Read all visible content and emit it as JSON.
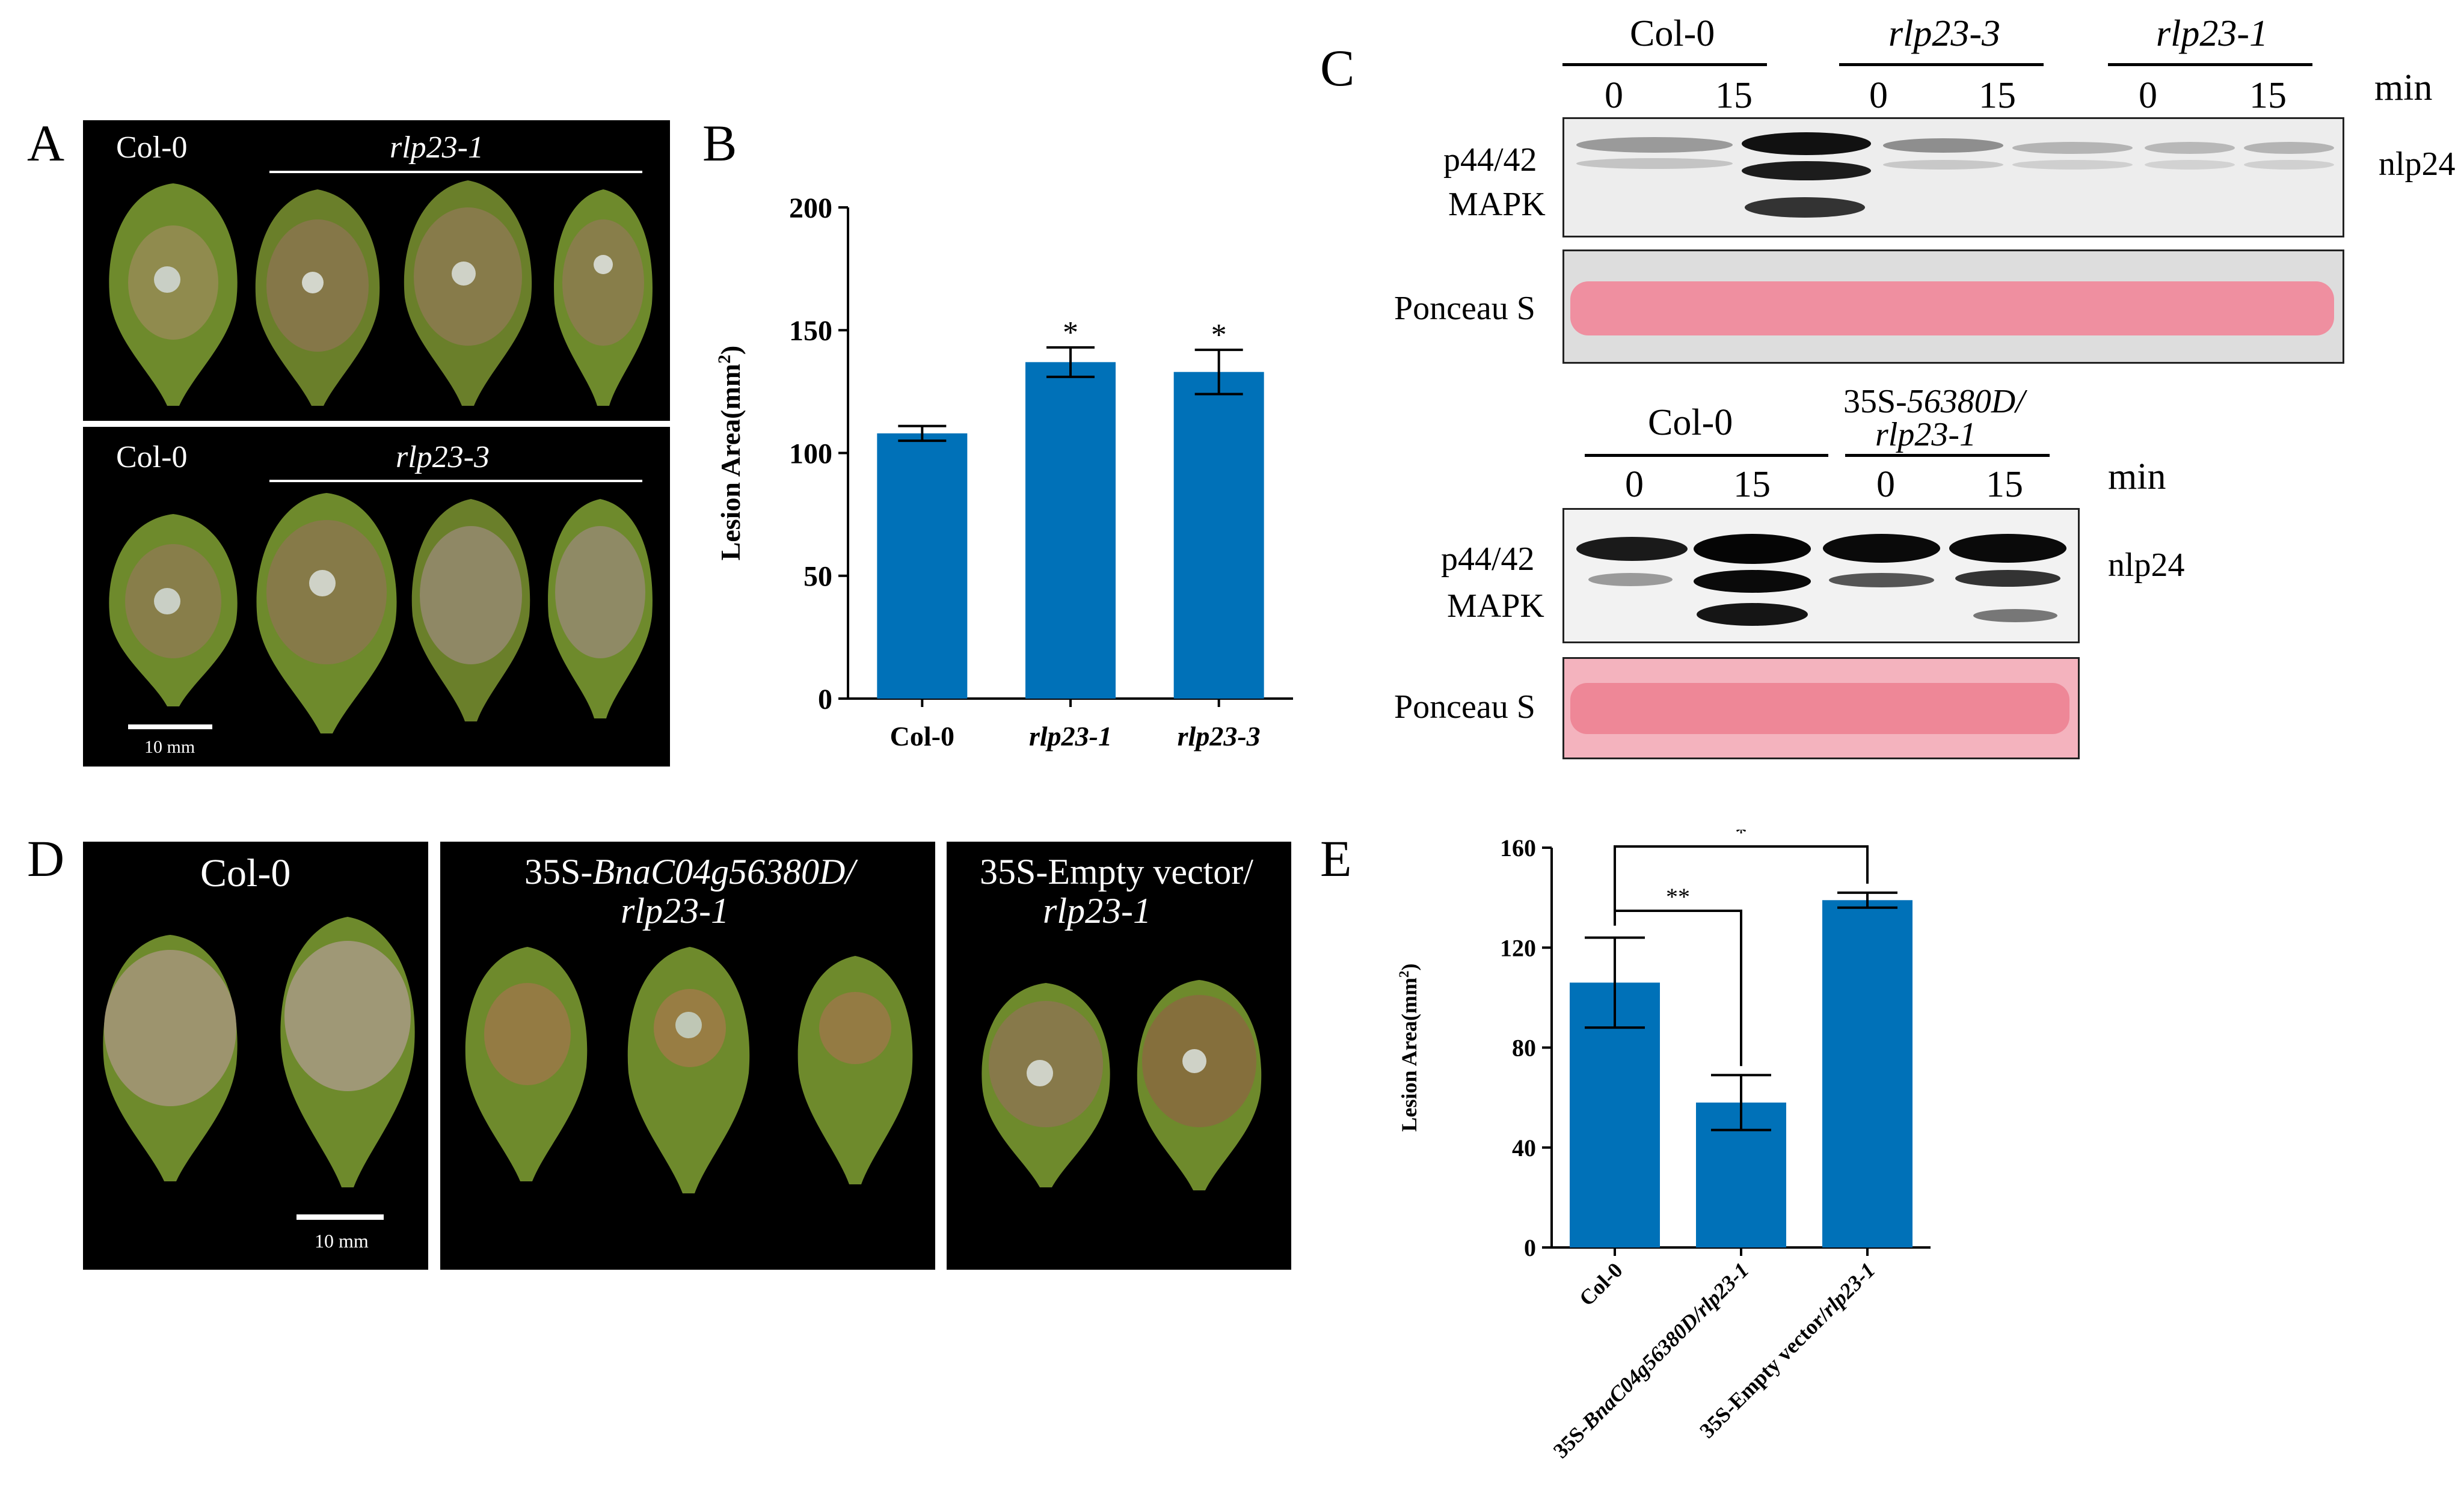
{
  "panels": {
    "A": {
      "letter": "A",
      "top": {
        "control": "Col-0",
        "mutant": "rlp23-1"
      },
      "bottom": {
        "control": "Col-0",
        "mutant": "rlp23-3"
      },
      "scale_label": "10 mm"
    },
    "B": {
      "letter": "B"
    },
    "C": {
      "letter": "C",
      "blot1": {
        "groups": [
          "Col-0",
          "rlp23-3",
          "rlp23-1"
        ],
        "times": [
          "0",
          "15",
          "0",
          "15",
          "0",
          "15"
        ],
        "unit": "min",
        "band_label_line1": "p44/42",
        "band_label_line2": "MAPK",
        "treatment": "nlp24",
        "loading": "Ponceau S"
      },
      "blot2": {
        "group1": "Col-0",
        "group2_line1_prefix": "35S-",
        "group2_line1_italic": "56380D/",
        "group2_line2": "rlp23-1",
        "times": [
          "0",
          "15",
          "0",
          "15"
        ],
        "unit": "min",
        "band_label_line1": "p44/42",
        "band_label_line2": "MAPK",
        "treatment": "nlp24",
        "loading": "Ponceau S"
      }
    },
    "D": {
      "letter": "D",
      "photo1_label": "Col-0",
      "photo2_label_line1_prefix": "35S-",
      "photo2_label_line1_italic": "BnaC04g56380D/",
      "photo2_label_line2": "rlp23-1",
      "photo3_label_line1": "35S-Empty vector/",
      "photo3_label_line2": "rlp23-1",
      "scale_label": "10 mm"
    },
    "E": {
      "letter": "E"
    }
  },
  "chart_data": [
    {
      "panel": "B",
      "type": "bar",
      "categories": [
        "Col-0",
        "rlp23-1",
        "rlp23-3"
      ],
      "values": [
        108,
        137,
        133
      ],
      "errors": [
        3,
        6,
        9
      ],
      "significance": [
        "",
        "*",
        "*"
      ],
      "ylabel_prefix": "Lesion Area(mm",
      "ylabel_sup": "2",
      "ylabel_suffix": ")",
      "ylim": [
        0,
        200
      ],
      "yticks": [
        "0",
        "50",
        "100",
        "150",
        "200"
      ],
      "bar_color": "#0071b8"
    },
    {
      "panel": "E",
      "type": "bar",
      "categories": [
        "Col-0",
        "35S-BnaC04g56380D/rlp23-1",
        "35S-Empty vector/rlp23-1"
      ],
      "category_parts": [
        [
          "Col-0",
          ""
        ],
        [
          "35S-",
          "BnaC04g56380D/rlp23-1"
        ],
        [
          "35S-Empty vector/",
          "rlp23-1"
        ]
      ],
      "values": [
        106,
        58,
        139
      ],
      "errors": [
        18,
        11,
        3
      ],
      "comparisons": [
        {
          "from": 0,
          "to": 1,
          "label": "**"
        },
        {
          "from": 0,
          "to": 2,
          "label": "*"
        }
      ],
      "ylabel_prefix": "Lesion Area(mm",
      "ylabel_sup": "2",
      "ylabel_suffix": ")",
      "ylim": [
        0,
        160
      ],
      "yticks": [
        "0",
        "40",
        "80",
        "120",
        "160"
      ],
      "bar_color": "#0071b8"
    }
  ]
}
